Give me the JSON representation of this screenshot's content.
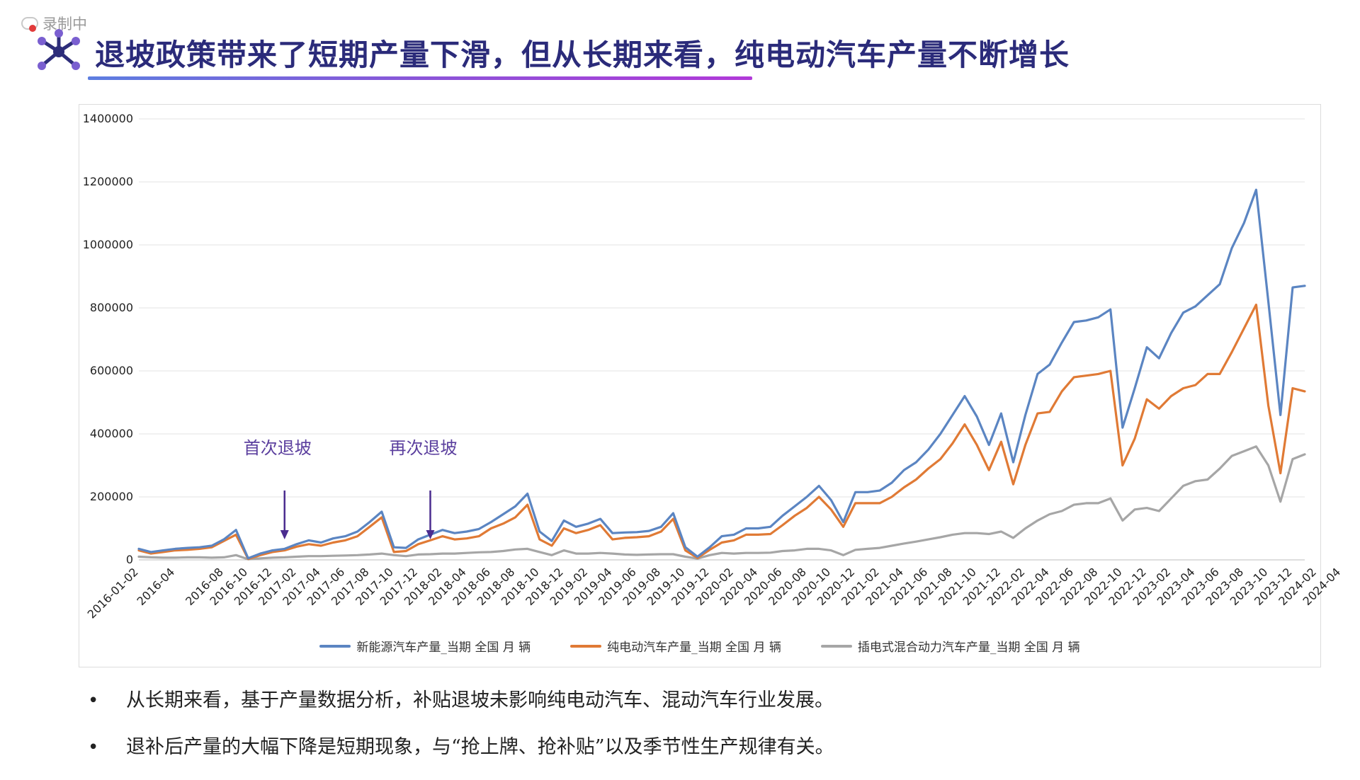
{
  "recording": {
    "label": "录制中"
  },
  "header": {
    "title": "退坡政策带来了短期产量下滑，但从长期来看，纯电动汽车产量不断增长"
  },
  "chart_data": {
    "type": "line",
    "title": "",
    "xlabel": "",
    "ylabel": "",
    "ylim": [
      0,
      1400000
    ],
    "yticks": [
      0,
      200000,
      400000,
      600000,
      800000,
      1000000,
      1200000,
      1400000
    ],
    "ytick_labels": [
      "0",
      "200000",
      "400000",
      "600000",
      "800000",
      "1000000",
      "1200000",
      "1400000"
    ],
    "grid": true,
    "legend_position": "bottom",
    "x_start": "2016-01-02",
    "x_tick_labels": [
      "2016-01-02",
      "2016-04",
      "2016-08",
      "2016-10",
      "2016-12",
      "2017-02",
      "2017-04",
      "2017-06",
      "2017-08",
      "2017-10",
      "2017-12",
      "2018-02",
      "2018-04",
      "2018-06",
      "2018-08",
      "2018-10",
      "2018-12",
      "2019-02",
      "2019-04",
      "2019-06",
      "2019-08",
      "2019-10",
      "2019-12",
      "2020-02",
      "2020-04",
      "2020-06",
      "2020-08",
      "2020-10",
      "2020-12",
      "2021-02",
      "2021-04",
      "2021-06",
      "2021-08",
      "2021-10",
      "2021-12",
      "2022-02",
      "2022-04",
      "2022-06",
      "2022-08",
      "2022-10",
      "2022-12",
      "2023-02",
      "2023-04",
      "2023-06",
      "2023-08",
      "2023-10",
      "2023-12",
      "2024-02",
      "2024-04"
    ],
    "series": [
      {
        "name": "新能源汽车产量_当期 全国 月 辆",
        "color": "#5b85c2",
        "values": [
          35000,
          25000,
          30000,
          35000,
          38000,
          40000,
          45000,
          65000,
          95000,
          5000,
          20000,
          30000,
          35000,
          50000,
          62000,
          55000,
          68000,
          75000,
          90000,
          120000,
          153000,
          40000,
          38000,
          65000,
          80000,
          95000,
          85000,
          90000,
          98000,
          120000,
          145000,
          170000,
          210000,
          90000,
          60000,
          125000,
          105000,
          115000,
          130000,
          85000,
          87000,
          88000,
          92000,
          105000,
          148000,
          40000,
          10000,
          40000,
          75000,
          80000,
          100000,
          100000,
          105000,
          140000,
          170000,
          200000,
          235000,
          190000,
          120000,
          215000,
          215000,
          220000,
          245000,
          285000,
          310000,
          350000,
          400000,
          460000,
          520000,
          455000,
          365000,
          465000,
          310000,
          460000,
          590000,
          620000,
          690000,
          755000,
          760000,
          770000,
          795000,
          420000,
          545000,
          675000,
          640000,
          720000,
          785000,
          805000,
          840000,
          875000,
          990000,
          1070000,
          1175000,
          820000,
          460000,
          865000,
          870000
        ]
      },
      {
        "name": "纯电动汽车产量_当期 全国 月 辆",
        "color": "#e07a35",
        "values": [
          30000,
          20000,
          25000,
          30000,
          32000,
          35000,
          40000,
          60000,
          80000,
          3000,
          15000,
          25000,
          30000,
          42000,
          50000,
          45000,
          55000,
          62000,
          75000,
          105000,
          135000,
          25000,
          28000,
          50000,
          62000,
          75000,
          65000,
          68000,
          75000,
          100000,
          115000,
          135000,
          175000,
          65000,
          45000,
          100000,
          85000,
          95000,
          110000,
          65000,
          70000,
          72000,
          75000,
          90000,
          130000,
          30000,
          6000,
          32000,
          55000,
          62000,
          80000,
          80000,
          82000,
          110000,
          140000,
          165000,
          200000,
          160000,
          105000,
          180000,
          180000,
          180000,
          200000,
          230000,
          255000,
          290000,
          320000,
          370000,
          430000,
          365000,
          285000,
          375000,
          240000,
          365000,
          465000,
          470000,
          535000,
          580000,
          585000,
          590000,
          600000,
          300000,
          385000,
          510000,
          480000,
          520000,
          545000,
          555000,
          590000,
          590000,
          660000,
          735000,
          810000,
          490000,
          275000,
          545000,
          535000
        ]
      },
      {
        "name": "插电式混合动力汽车产量_当期 全国 月 辆",
        "color": "#a6a6a6",
        "values": [
          10000,
          8000,
          7000,
          7000,
          8000,
          8000,
          7000,
          8000,
          15000,
          2000,
          5000,
          7000,
          8000,
          10000,
          12000,
          12000,
          13000,
          14000,
          15000,
          17000,
          20000,
          15000,
          12000,
          17000,
          18000,
          20000,
          20000,
          22000,
          24000,
          25000,
          28000,
          33000,
          35000,
          25000,
          15000,
          30000,
          20000,
          20000,
          22000,
          20000,
          17000,
          16000,
          17000,
          18000,
          18000,
          10000,
          4000,
          15000,
          22000,
          20000,
          22000,
          22000,
          23000,
          28000,
          30000,
          35000,
          35000,
          30000,
          15000,
          32000,
          35000,
          38000,
          45000,
          52000,
          58000,
          65000,
          72000,
          80000,
          85000,
          85000,
          82000,
          90000,
          70000,
          100000,
          125000,
          145000,
          155000,
          175000,
          180000,
          180000,
          195000,
          125000,
          160000,
          165000,
          155000,
          195000,
          235000,
          250000,
          255000,
          290000,
          330000,
          345000,
          360000,
          300000,
          185000,
          320000,
          335000
        ]
      }
    ],
    "annotations": [
      {
        "text": "首次退坡",
        "x": "2017-01"
      },
      {
        "text": "再次退坡",
        "x": "2018-01"
      }
    ]
  },
  "bullets": [
    "从长期来看，基于产量数据分析，补贴退坡未影响纯电动汽车、混动汽车行业发展。",
    "退补后产量的大幅下降是短期现象，与“抢上牌、抢补贴”以及季节性生产规律有关。"
  ]
}
